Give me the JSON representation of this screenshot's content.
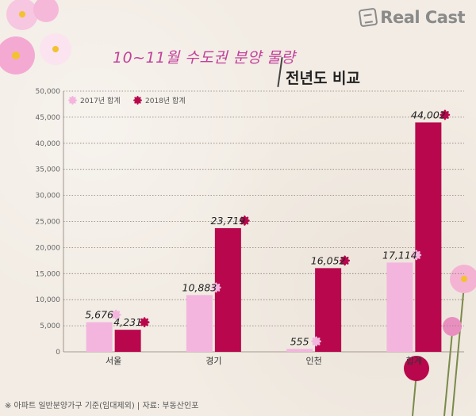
{
  "brand": {
    "name": "Real Cast"
  },
  "title": {
    "main": "10~11월 수도권 분양 물량",
    "sub": "전년도 비교"
  },
  "footnote": "※ 아파트 일반분양가구 기준(임대제외) | 자료: 부동산인포",
  "colors": {
    "s2017": "#f3b5de",
    "s2018": "#b8074d",
    "grid": "#8b7f74",
    "title": "#c2409a"
  },
  "chart_data": {
    "type": "bar",
    "categories": [
      "서울",
      "경기",
      "인천",
      "합계"
    ],
    "series": [
      {
        "name": "2017년 합계",
        "values": [
          5676,
          10883,
          555,
          17114
        ],
        "labels": [
          "5,676",
          "10,883",
          "555",
          "17,114"
        ]
      },
      {
        "name": "2018년 합계",
        "values": [
          4231,
          23719,
          16052,
          44002
        ],
        "labels": [
          "4,231",
          "23,719",
          "16,052",
          "44,002"
        ]
      }
    ],
    "ylim": [
      0,
      50000
    ],
    "yticks": [
      "0",
      "5,000",
      "10,000",
      "15,000",
      "20,000",
      "25,000",
      "30,000",
      "35,000",
      "40,000",
      "45,000",
      "50,000"
    ],
    "grid": true,
    "legend": "top-left"
  }
}
